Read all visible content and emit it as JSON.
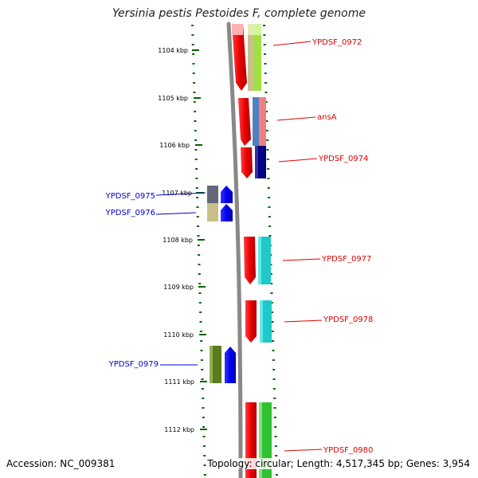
{
  "title": "Yersinia pestis Pestoides F, complete genome",
  "accession": "Accession: NC_009381",
  "topology": "Topology: circular; Length: 4,517,345 bp; Genes: 3,954",
  "colors": {
    "plus_strand_label": "#dd0000",
    "minus_strand_label": "#0000cc",
    "tick": "#006600",
    "backbone": "#888888"
  },
  "kbp_ticks": [
    {
      "label": "1104 kbp"
    },
    {
      "label": "1105 kbp"
    },
    {
      "label": "1106 kbp"
    },
    {
      "label": "1107 kbp"
    },
    {
      "label": "1108 kbp"
    },
    {
      "label": "1109 kbp"
    },
    {
      "label": "1110 kbp"
    },
    {
      "label": "1111 kbp"
    },
    {
      "label": "1112 kbp"
    }
  ],
  "genes": [
    {
      "label": "YPDSF_0972",
      "strand": "right",
      "color": "#dd0000"
    },
    {
      "label": "ansA",
      "strand": "right",
      "color": "#dd0000"
    },
    {
      "label": "YPDSF_0974",
      "strand": "right",
      "color": "#dd0000"
    },
    {
      "label": "YPDSF_0975",
      "strand": "left",
      "color": "#0000cc"
    },
    {
      "label": "YPDSF_0976",
      "strand": "left",
      "color": "#0000cc"
    },
    {
      "label": "YPDSF_0977",
      "strand": "right",
      "color": "#dd0000"
    },
    {
      "label": "YPDSF_0978",
      "strand": "right",
      "color": "#dd0000"
    },
    {
      "label": "YPDSF_0979",
      "strand": "left",
      "color": "#0000cc"
    },
    {
      "label": "YPDSF_0980",
      "strand": "right",
      "color": "#dd0000"
    }
  ]
}
